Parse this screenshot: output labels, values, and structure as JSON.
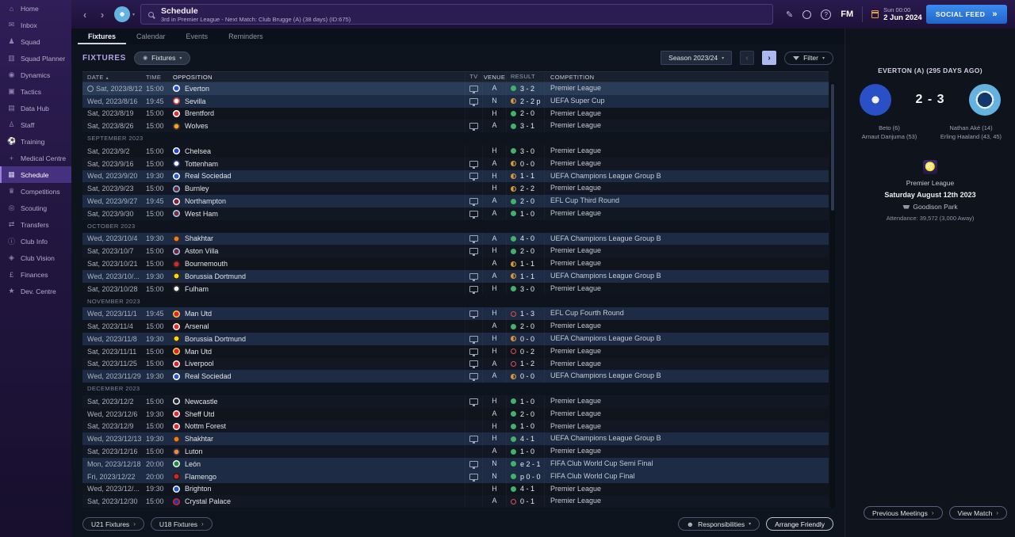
{
  "sidebar": {
    "items": [
      {
        "label": "Home",
        "icon": "home-icon"
      },
      {
        "label": "Inbox",
        "icon": "inbox-icon"
      },
      {
        "label": "Squad",
        "icon": "squad-icon"
      },
      {
        "label": "Squad Planner",
        "icon": "squad-planner-icon"
      },
      {
        "label": "Dynamics",
        "icon": "dynamics-icon"
      },
      {
        "label": "Tactics",
        "icon": "tactics-icon"
      },
      {
        "label": "Data Hub",
        "icon": "data-hub-icon"
      },
      {
        "label": "Staff",
        "icon": "staff-icon"
      },
      {
        "label": "Training",
        "icon": "training-icon"
      },
      {
        "label": "Medical Centre",
        "icon": "medical-icon"
      },
      {
        "label": "Schedule",
        "icon": "schedule-icon",
        "active": true
      },
      {
        "label": "Competitions",
        "icon": "competitions-icon"
      },
      {
        "label": "Scouting",
        "icon": "scouting-icon"
      },
      {
        "label": "Transfers",
        "icon": "transfers-icon"
      },
      {
        "label": "Club Info",
        "icon": "club-info-icon"
      },
      {
        "label": "Club Vision",
        "icon": "club-vision-icon"
      },
      {
        "label": "Finances",
        "icon": "finances-icon"
      },
      {
        "label": "Dev. Centre",
        "icon": "dev-centre-icon"
      }
    ]
  },
  "topbar": {
    "title": "Schedule",
    "subtitle": "3rd in Premier League - Next Match: Club Brugge (A) (38 days) (ID:675)",
    "clock": "Sun 00:00",
    "date": "2 Jun 2024",
    "fm_logo": "FM",
    "social_feed_label": "SOCIAL FEED"
  },
  "tabs": [
    {
      "label": "Fixtures",
      "active": true
    },
    {
      "label": "Calendar",
      "active": false
    },
    {
      "label": "Events",
      "active": false
    },
    {
      "label": "Reminders",
      "active": false
    }
  ],
  "toolbar": {
    "section_label": "FIXTURES",
    "view_pill": "Fixtures",
    "season": "Season 2023/24",
    "filter": "Filter"
  },
  "table": {
    "columns": [
      "DATE",
      "TIME",
      "OPPOSITION",
      "TV",
      "VENUE",
      "RESULT",
      "COMPETITION"
    ]
  },
  "fixtures": [
    {
      "date": "Sat, 2023/8/12",
      "time": "15:00",
      "opposition": "Everton",
      "badge": [
        "#2a52cc",
        "#ffffff"
      ],
      "tv": true,
      "venue": "A",
      "outcome": "win",
      "result": "3 - 2",
      "competition": "Premier League",
      "selected": true
    },
    {
      "date": "Wed, 2023/8/16",
      "time": "19:45",
      "opposition": "Sevilla",
      "badge": [
        "#f0f0f0",
        "#c8332e"
      ],
      "tv": true,
      "venue": "N",
      "outcome": "draw",
      "result": "2 - 2 p",
      "competition": "UEFA Super Cup",
      "highlight": true
    },
    {
      "date": "Sat, 2023/8/19",
      "time": "15:00",
      "opposition": "Brentford",
      "badge": [
        "#d8343c",
        "#ffffff"
      ],
      "tv": false,
      "venue": "H",
      "outcome": "win",
      "result": "2 - 0",
      "competition": "Premier League"
    },
    {
      "date": "Sat, 2023/8/26",
      "time": "15:00",
      "opposition": "Wolves",
      "badge": [
        "#f2a71b",
        "#2a2a2a"
      ],
      "tv": true,
      "venue": "A",
      "outcome": "win",
      "result": "3 - 1",
      "competition": "Premier League"
    },
    {
      "section": "SEPTEMBER 2023"
    },
    {
      "date": "Sat, 2023/9/2",
      "time": "15:00",
      "opposition": "Chelsea",
      "badge": [
        "#2448c8",
        "#ffffff"
      ],
      "tv": false,
      "venue": "H",
      "outcome": "win",
      "result": "3 - 0",
      "competition": "Premier League"
    },
    {
      "date": "Sat, 2023/9/16",
      "time": "15:00",
      "opposition": "Tottenham",
      "badge": [
        "#f2f2f2",
        "#1a2a5e"
      ],
      "tv": true,
      "venue": "A",
      "outcome": "draw",
      "result": "0 - 0",
      "competition": "Premier League"
    },
    {
      "date": "Wed, 2023/9/20",
      "time": "19:30",
      "opposition": "Real Sociedad",
      "badge": [
        "#2a5ac8",
        "#ffffff"
      ],
      "tv": true,
      "venue": "H",
      "outcome": "draw",
      "result": "1 - 1",
      "competition": "UEFA Champions League Group B",
      "highlight": true
    },
    {
      "date": "Sat, 2023/9/23",
      "time": "15:00",
      "opposition": "Burnley",
      "badge": [
        "#701f3e",
        "#8ac7ea"
      ],
      "tv": false,
      "venue": "H",
      "outcome": "draw",
      "result": "2 - 2",
      "competition": "Premier League"
    },
    {
      "date": "Wed, 2023/9/27",
      "time": "19:45",
      "opposition": "Northampton",
      "badge": [
        "#861f3a",
        "#f2f2f2"
      ],
      "tv": true,
      "venue": "A",
      "outcome": "win",
      "result": "2 - 0",
      "competition": "EFL Cup Third Round",
      "highlight": true
    },
    {
      "date": "Sat, 2023/9/30",
      "time": "15:00",
      "opposition": "West Ham",
      "badge": [
        "#7e2a3c",
        "#9ed4f0"
      ],
      "tv": true,
      "venue": "A",
      "outcome": "win",
      "result": "1 - 0",
      "competition": "Premier League"
    },
    {
      "section": "OCTOBER 2023"
    },
    {
      "date": "Wed, 2023/10/4",
      "time": "19:30",
      "opposition": "Shakhtar",
      "badge": [
        "#f07d17",
        "#222222"
      ],
      "tv": true,
      "venue": "A",
      "outcome": "win",
      "result": "4 - 0",
      "competition": "UEFA Champions League Group B",
      "highlight": true
    },
    {
      "date": "Sat, 2023/10/7",
      "time": "15:00",
      "opposition": "Aston Villa",
      "badge": [
        "#7a1f3e",
        "#9ec8e8"
      ],
      "tv": true,
      "venue": "H",
      "outcome": "win",
      "result": "2 - 0",
      "competition": "Premier League"
    },
    {
      "date": "Sat, 2023/10/21",
      "time": "15:00",
      "opposition": "Bournemouth",
      "badge": [
        "#d4282d",
        "#222222"
      ],
      "tv": false,
      "venue": "A",
      "outcome": "draw",
      "result": "1 - 1",
      "competition": "Premier League"
    },
    {
      "date": "Wed, 2023/10/...",
      "time": "19:30",
      "opposition": "Borussia Dortmund",
      "badge": [
        "#ffd60a",
        "#1a1a1a"
      ],
      "tv": true,
      "venue": "A",
      "outcome": "draw",
      "result": "1 - 1",
      "competition": "UEFA Champions League Group B",
      "highlight": true
    },
    {
      "date": "Sat, 2023/10/28",
      "time": "15:00",
      "opposition": "Fulham",
      "badge": [
        "#f2f2f2",
        "#1a1a1a"
      ],
      "tv": true,
      "venue": "H",
      "outcome": "win",
      "result": "3 - 0",
      "competition": "Premier League"
    },
    {
      "section": "NOVEMBER 2023"
    },
    {
      "date": "Wed, 2023/11/1",
      "time": "19:45",
      "opposition": "Man Utd",
      "badge": [
        "#d8232a",
        "#f5c842"
      ],
      "tv": true,
      "venue": "H",
      "outcome": "loss",
      "result": "1 - 3",
      "competition": "EFL Cup Fourth Round",
      "highlight": true
    },
    {
      "date": "Sat, 2023/11/4",
      "time": "15:00",
      "opposition": "Arsenal",
      "badge": [
        "#e02a30",
        "#f2f2f2"
      ],
      "tv": false,
      "venue": "A",
      "outcome": "win",
      "result": "2 - 0",
      "competition": "Premier League"
    },
    {
      "date": "Wed, 2023/11/8",
      "time": "19:30",
      "opposition": "Borussia Dortmund",
      "badge": [
        "#ffd60a",
        "#1a1a1a"
      ],
      "tv": true,
      "venue": "H",
      "outcome": "draw",
      "result": "0 - 0",
      "competition": "UEFA Champions League Group B",
      "highlight": true
    },
    {
      "date": "Sat, 2023/11/11",
      "time": "15:00",
      "opposition": "Man Utd",
      "badge": [
        "#d8232a",
        "#f5c842"
      ],
      "tv": true,
      "venue": "H",
      "outcome": "loss",
      "result": "0 - 2",
      "competition": "Premier League"
    },
    {
      "date": "Sat, 2023/11/25",
      "time": "15:00",
      "opposition": "Liverpool",
      "badge": [
        "#d8232a",
        "#f2f2f2"
      ],
      "tv": true,
      "venue": "A",
      "outcome": "loss",
      "result": "1 - 2",
      "competition": "Premier League"
    },
    {
      "date": "Wed, 2023/11/29",
      "time": "19:30",
      "opposition": "Real Sociedad",
      "badge": [
        "#2a5ac8",
        "#ffffff"
      ],
      "tv": true,
      "venue": "A",
      "outcome": "draw",
      "result": "0 - 0",
      "competition": "UEFA Champions League Group B",
      "highlight": true
    },
    {
      "section": "DECEMBER 2023"
    },
    {
      "date": "Sat, 2023/12/2",
      "time": "15:00",
      "opposition": "Newcastle",
      "badge": [
        "#26262c",
        "#f2f2f2"
      ],
      "tv": true,
      "venue": "H",
      "outcome": "win",
      "result": "1 - 0",
      "competition": "Premier League"
    },
    {
      "date": "Wed, 2023/12/6",
      "time": "19:30",
      "opposition": "Sheff Utd",
      "badge": [
        "#e02a30",
        "#f2f2f2"
      ],
      "tv": false,
      "venue": "A",
      "outcome": "win",
      "result": "2 - 0",
      "competition": "Premier League"
    },
    {
      "date": "Sat, 2023/12/9",
      "time": "15:00",
      "opposition": "Nottm Forest",
      "badge": [
        "#e02a30",
        "#f2f2f2"
      ],
      "tv": false,
      "venue": "H",
      "outcome": "win",
      "result": "1 - 0",
      "competition": "Premier League"
    },
    {
      "date": "Wed, 2023/12/13",
      "time": "19:30",
      "opposition": "Shakhtar",
      "badge": [
        "#f07d17",
        "#222222"
      ],
      "tv": true,
      "venue": "H",
      "outcome": "win",
      "result": "4 - 1",
      "competition": "UEFA Champions League Group B",
      "highlight": true
    },
    {
      "date": "Sat, 2023/12/16",
      "time": "15:00",
      "opposition": "Luton",
      "badge": [
        "#f28a2a",
        "#16265c"
      ],
      "tv": false,
      "venue": "A",
      "outcome": "win",
      "result": "1 - 0",
      "competition": "Premier League"
    },
    {
      "date": "Mon, 2023/12/18",
      "time": "20:00",
      "opposition": "León",
      "badge": [
        "#1f8a3f",
        "#f2f2f2"
      ],
      "tv": true,
      "venue": "N",
      "outcome": "win",
      "result": "e 2 - 1",
      "competition": "FIFA Club World Cup Semi Final",
      "highlight": true
    },
    {
      "date": "Fri, 2023/12/22",
      "time": "20:00",
      "opposition": "Flamengo",
      "badge": [
        "#d8232a",
        "#1a1a1a"
      ],
      "tv": true,
      "venue": "N",
      "outcome": "win",
      "result": "p 0 - 0",
      "competition": "FIFA Club World Cup Final",
      "highlight": true
    },
    {
      "date": "Wed, 2023/12/...",
      "time": "19:30",
      "opposition": "Brighton",
      "badge": [
        "#2458c8",
        "#f2f2f2"
      ],
      "tv": false,
      "venue": "H",
      "outcome": "win",
      "result": "4 - 1",
      "competition": "Premier League"
    },
    {
      "date": "Sat, 2023/12/30",
      "time": "15:00",
      "opposition": "Crystal Palace",
      "badge": [
        "#2038a0",
        "#d8232a"
      ],
      "tv": false,
      "venue": "A",
      "outcome": "loss",
      "result": "0 - 1",
      "competition": "Premier League"
    }
  ],
  "bottombar": {
    "u21": "U21 Fixtures",
    "u18": "U18 Fixtures",
    "responsibilities": "Responsibilities",
    "arrange": "Arrange Friendly"
  },
  "match_panel": {
    "header": "EVERTON (A) (295 DAYS AGO)",
    "home_team": "Everton",
    "away_team": "Manchester City",
    "score": "2 - 3",
    "home_scorers": [
      "Beto (6)",
      "Arnaut Danjuma (53)"
    ],
    "away_scorers": [
      "Nathan Aké (14)",
      "Erling Haaland (43, 45)"
    ],
    "competition": "Premier League",
    "date": "Saturday August 12th 2023",
    "venue": "Goodison Park",
    "attendance": "Attendance: 39,572 (3,000 Away)",
    "prev_meetings_label": "Previous Meetings",
    "view_match_label": "View Match"
  },
  "colors": {
    "win": "#43b06c",
    "draw": "#d79b3c",
    "loss": "#d85252",
    "cup_row": "#1d2b44",
    "selected_row": "#2a3d58",
    "social_blue": "#2e7fe0"
  }
}
